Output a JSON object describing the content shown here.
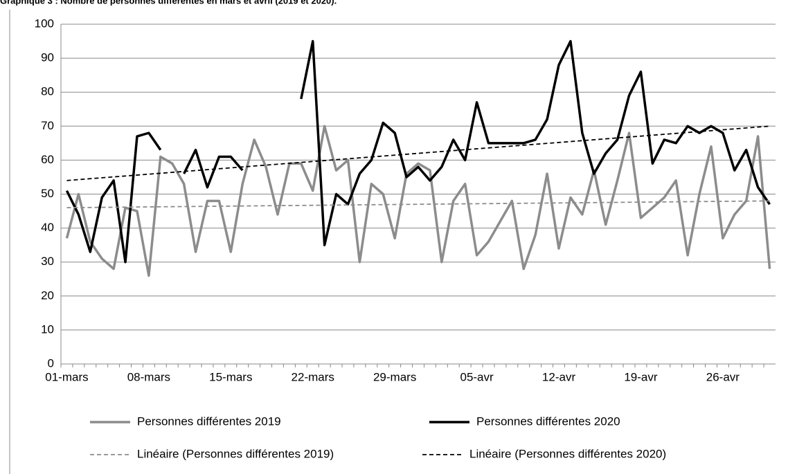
{
  "chart_data": {
    "type": "line",
    "title": "Graphique 3 : Nombre de personnes différentes en mars et avril (2019 et 2020).",
    "categories": [
      "01-mars",
      null,
      null,
      null,
      null,
      null,
      null,
      "08-mars",
      null,
      null,
      null,
      null,
      null,
      null,
      "15-mars",
      null,
      null,
      null,
      null,
      null,
      null,
      "22-mars",
      null,
      null,
      null,
      null,
      null,
      null,
      "29-mars",
      null,
      null,
      null,
      null,
      null,
      null,
      "05-avr",
      null,
      null,
      null,
      null,
      null,
      null,
      "12-avr",
      null,
      null,
      null,
      null,
      null,
      null,
      "19-avr",
      null,
      null,
      null,
      null,
      null,
      null,
      "26-avr",
      null,
      null,
      null,
      null
    ],
    "series": [
      {
        "name": "Personnes différentes 2019",
        "color": "#8c8c8c",
        "values": [
          37,
          50,
          36,
          31,
          28,
          46,
          45,
          26,
          61,
          59,
          53,
          33,
          48,
          48,
          33,
          53,
          66,
          58,
          44,
          59,
          59,
          51,
          70,
          57,
          60,
          30,
          53,
          50,
          37,
          56,
          59,
          57,
          30,
          48,
          53,
          32,
          36,
          42,
          48,
          28,
          38,
          56,
          34,
          49,
          44,
          57,
          41,
          54,
          68,
          43,
          46,
          49,
          54,
          32,
          50,
          64,
          37,
          44,
          48,
          67,
          28
        ]
      },
      {
        "name": "Personnes différentes 2020",
        "color": "#000000",
        "values": [
          51,
          44,
          33,
          49,
          54,
          30,
          67,
          68,
          63,
          null,
          56,
          63,
          52,
          61,
          61,
          57,
          null,
          null,
          null,
          null,
          78,
          95,
          35,
          50,
          47,
          56,
          60,
          71,
          68,
          55,
          58,
          54,
          58,
          66,
          60,
          77,
          65,
          65,
          65,
          65,
          66,
          72,
          88,
          95,
          68,
          56,
          62,
          66,
          79,
          86,
          59,
          66,
          65,
          70,
          68,
          70,
          68,
          57,
          63,
          52,
          47
        ]
      }
    ],
    "trendlines": [
      {
        "name": "Linéaire (Personnes différentes 2019)",
        "color": "#8c8c8c",
        "values": [
          46,
          48
        ]
      },
      {
        "name": "Linéaire (Personnes différentes 2020)",
        "color": "#000000",
        "values": [
          54,
          70
        ]
      }
    ],
    "ylim": [
      0,
      100
    ],
    "yticks": [
      0,
      10,
      20,
      30,
      40,
      50,
      60,
      70,
      80,
      90,
      100
    ],
    "grid": true
  }
}
